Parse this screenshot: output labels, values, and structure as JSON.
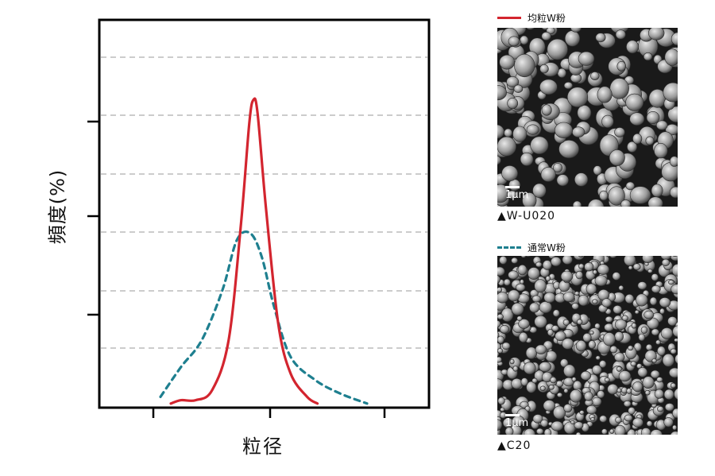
{
  "chart_data": {
    "type": "line",
    "ylabel": "頻度(%)",
    "xlabel": "粒径",
    "grid": "horizontal dashed",
    "series": [
      {
        "name": "均粒W粉",
        "style": "solid",
        "color": "#d3252f",
        "points": [
          [
            0.0,
            0.01
          ],
          [
            0.05,
            0.02
          ],
          [
            0.12,
            0.02
          ],
          [
            0.2,
            0.05
          ],
          [
            0.28,
            0.2
          ],
          [
            0.34,
            0.55
          ],
          [
            0.38,
            0.85
          ],
          [
            0.4,
            0.92
          ],
          [
            0.42,
            0.88
          ],
          [
            0.46,
            0.6
          ],
          [
            0.52,
            0.25
          ],
          [
            0.58,
            0.1
          ],
          [
            0.66,
            0.03
          ],
          [
            0.71,
            0.01
          ]
        ]
      },
      {
        "name": "通常W粉",
        "style": "dashed",
        "color": "#1e7f8f",
        "points": [
          [
            -0.05,
            0.03
          ],
          [
            0.05,
            0.12
          ],
          [
            0.15,
            0.2
          ],
          [
            0.25,
            0.35
          ],
          [
            0.32,
            0.5
          ],
          [
            0.385,
            0.52
          ],
          [
            0.44,
            0.45
          ],
          [
            0.5,
            0.3
          ],
          [
            0.58,
            0.15
          ],
          [
            0.7,
            0.08
          ],
          [
            0.82,
            0.04
          ],
          [
            0.95,
            0.01
          ]
        ]
      }
    ]
  },
  "legend": {
    "item1": "均粒W粉",
    "item2": "通常W粉"
  },
  "images": {
    "scale1": "1μm",
    "caption1": "▲W-U020",
    "scale2": "1μm",
    "caption2": "▲C20"
  },
  "colors": {
    "solid": "#d3252f",
    "dashed": "#1e7f8f"
  }
}
